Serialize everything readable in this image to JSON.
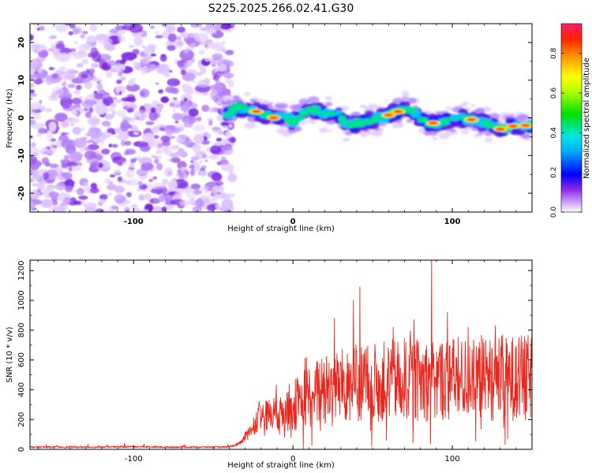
{
  "chart_data": [
    {
      "type": "heatmap",
      "title": "S225.2025.266.02.41.G30",
      "xlabel": "Height of straight line (km)",
      "ylabel": "Frequency (Hz)",
      "xlim": [
        -165,
        150
      ],
      "ylim": [
        -25,
        25
      ],
      "xticks": [
        -100,
        0,
        100
      ],
      "xtick_labels": [
        "-100",
        "0",
        "100"
      ],
      "yticks": [
        -20,
        -10,
        0,
        10,
        20
      ],
      "ytick_labels": [
        "-20",
        "-10",
        "0",
        "10",
        "20"
      ],
      "noise_region_x": [
        -165,
        -40
      ],
      "ridge": {
        "x": [
          -43,
          -35,
          -28,
          -20,
          -12,
          -5,
          0,
          5,
          12,
          20,
          28,
          35,
          45,
          55,
          65,
          72,
          78,
          85,
          95,
          105,
          112,
          118,
          125,
          130,
          140,
          148
        ],
        "frequency": [
          0,
          3,
          2,
          1.5,
          0,
          0.5,
          -1,
          1,
          2.5,
          1,
          1,
          -2,
          -1,
          0,
          1.5,
          2.5,
          1,
          -1.5,
          -1,
          0,
          -0.5,
          -1,
          -2,
          -3,
          -2,
          -2
        ]
      },
      "colorbar": {
        "label": "Normalized spectral amplitude",
        "range": [
          0,
          0.95
        ],
        "ticks": [
          0.0,
          0.2,
          0.4,
          0.6,
          0.8
        ],
        "tick_labels": [
          "0.0",
          "0.2",
          "0.4",
          "0.6",
          "0.8"
        ]
      }
    },
    {
      "type": "line",
      "title": "",
      "xlabel": "Height of straight line (km)",
      "ylabel": "SNR (10 * v/v)",
      "xlim": [
        -165,
        150
      ],
      "ylim": [
        0,
        1270
      ],
      "xticks": [
        -100,
        0,
        100
      ],
      "xtick_labels": [
        "-100",
        "0",
        "100"
      ],
      "yticks": [
        0,
        200,
        400,
        600,
        800,
        1000,
        1200
      ],
      "ytick_labels": [
        "0",
        "200",
        "400",
        "600",
        "800",
        "1000",
        "1200"
      ],
      "series": [
        {
          "name": "SNR",
          "color": "#e8271e",
          "x": [
            -165,
            -120,
            -100,
            -80,
            -60,
            -40,
            -33,
            -28,
            -22,
            -15,
            -8,
            0,
            5,
            10,
            15,
            20,
            25,
            30,
            35,
            40,
            45,
            50,
            55,
            60,
            65,
            70,
            75,
            80,
            85,
            88,
            90,
            95,
            100,
            105,
            110,
            115,
            120,
            125,
            130,
            135,
            140,
            145,
            150
          ],
          "mean": [
            15,
            15,
            18,
            15,
            15,
            15,
            40,
            110,
            210,
            230,
            260,
            290,
            330,
            360,
            380,
            420,
            420,
            430,
            440,
            440,
            450,
            440,
            450,
            460,
            460,
            470,
            470,
            460,
            470,
            480,
            470,
            470,
            470,
            470,
            470,
            470,
            470,
            470,
            480,
            480,
            480,
            480,
            480
          ],
          "peaks": [
            {
              "x": 38,
              "value": 1000
            },
            {
              "x": 42,
              "value": 1090
            },
            {
              "x": 87,
              "value": 1270
            },
            {
              "x": 26,
              "value": 880
            },
            {
              "x": 76,
              "value": 870
            },
            {
              "x": 127,
              "value": 830
            },
            {
              "x": 63,
              "value": 820
            },
            {
              "x": 110,
              "value": 820
            }
          ]
        }
      ]
    }
  ]
}
